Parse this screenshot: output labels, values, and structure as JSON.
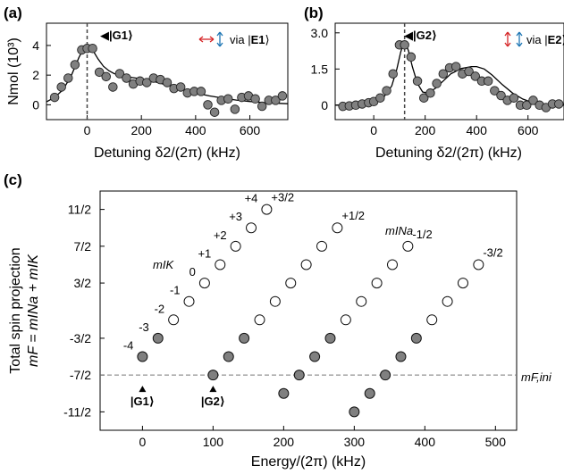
{
  "figure": {
    "panels": [
      {
        "id": "a",
        "label": "(a)"
      },
      {
        "id": "b",
        "label": "(b)"
      },
      {
        "id": "c",
        "label": "(c)"
      }
    ]
  },
  "chart_data": [
    {
      "panel": "(a)",
      "type": "scatter",
      "xlabel": "Detuning δ2/(2π) (kHz)",
      "ylabel": "Nmol (10³)",
      "xlim": [
        -150,
        740
      ],
      "ylim": [
        -1,
        5.5
      ],
      "xticks": [
        0,
        200,
        400,
        600
      ],
      "yticks": [
        0,
        2,
        4
      ],
      "grid": false,
      "points": {
        "x": [
          -120,
          -95,
          -70,
          -45,
          -20,
          0,
          20,
          45,
          70,
          95,
          120,
          145,
          170,
          195,
          220,
          245,
          270,
          295,
          320,
          345,
          370,
          395,
          420,
          445,
          470,
          495,
          520,
          545,
          570,
          595,
          620,
          645,
          670,
          695,
          720
        ],
        "y": [
          0.5,
          1.2,
          1.8,
          2.7,
          3.7,
          3.8,
          3.8,
          2.2,
          1.9,
          1.2,
          2.1,
          1.8,
          1.4,
          1.6,
          1.5,
          1.8,
          1.7,
          1.5,
          1.1,
          1.2,
          0.8,
          0.9,
          0.9,
          0.0,
          -0.5,
          0.3,
          0.4,
          -0.3,
          0.5,
          0.6,
          0.4,
          -0.1,
          0.3,
          0.3,
          0.6
        ]
      },
      "fit": {
        "x": [
          -150,
          -120,
          -90,
          -60,
          -30,
          -10,
          0,
          10,
          20,
          40,
          60,
          80,
          100,
          130,
          160,
          200,
          250,
          300,
          350,
          400,
          450,
          500,
          550,
          600,
          650,
          700,
          740
        ],
        "y": [
          0.2,
          0.5,
          1.0,
          1.9,
          3.2,
          3.9,
          4.0,
          3.9,
          3.7,
          3.1,
          2.6,
          2.3,
          2.1,
          1.95,
          1.85,
          1.75,
          1.55,
          1.3,
          1.05,
          0.8,
          0.6,
          0.45,
          0.32,
          0.22,
          0.15,
          0.1,
          0.07
        ]
      },
      "vline_x": 0,
      "annotations": {
        "state_label": "◀|G1⟩",
        "via_text": "via |",
        "via_state": "E1",
        "via_close": "⟩"
      }
    },
    {
      "panel": "(b)",
      "type": "scatter",
      "xlabel": "Detuning δ2/(2π) (kHz)",
      "ylabel": "",
      "xlim": [
        -150,
        740
      ],
      "ylim": [
        -0.6,
        3.4
      ],
      "xticks": [
        0,
        200,
        400,
        600
      ],
      "yticks": [
        0,
        1.5,
        3.0
      ],
      "ytick_labels": [
        "0",
        "1.5",
        "3.0"
      ],
      "grid": false,
      "points": {
        "x": [
          -120,
          -95,
          -70,
          -45,
          -20,
          0,
          25,
          50,
          75,
          100,
          120,
          145,
          170,
          195,
          220,
          245,
          270,
          295,
          320,
          345,
          370,
          395,
          420,
          445,
          470,
          495,
          520,
          545,
          570,
          595,
          620,
          645,
          670,
          695,
          720
        ],
        "y": [
          -0.05,
          -0.03,
          0.0,
          0.05,
          0.1,
          0.15,
          0.3,
          0.6,
          1.3,
          2.5,
          2.5,
          2.0,
          1.0,
          0.3,
          0.5,
          0.9,
          1.3,
          1.55,
          1.6,
          1.3,
          1.4,
          1.2,
          1.0,
          1.0,
          0.6,
          0.4,
          0.2,
          0.3,
          0.0,
          0.0,
          0.2,
          0.0,
          -0.1,
          0.05,
          0.05
        ]
      },
      "fit": {
        "x": [
          -150,
          -100,
          -50,
          0,
          40,
          70,
          90,
          105,
          115,
          120,
          125,
          135,
          150,
          170,
          190,
          210,
          240,
          270,
          300,
          340,
          380,
          400,
          430,
          460,
          500,
          540,
          580,
          620,
          660,
          700,
          740
        ],
        "y": [
          0.0,
          0.02,
          0.06,
          0.15,
          0.35,
          0.8,
          1.5,
          2.2,
          2.55,
          2.6,
          2.55,
          2.25,
          1.6,
          0.9,
          0.55,
          0.5,
          0.7,
          1.0,
          1.3,
          1.52,
          1.6,
          1.6,
          1.5,
          1.25,
          0.85,
          0.5,
          0.25,
          0.1,
          0.04,
          0.01,
          0.0
        ]
      },
      "vline_x": 120,
      "annotations": {
        "state_label": "◀|G2⟩",
        "via_text": "via |",
        "via_state": "E2",
        "via_close": "⟩"
      }
    },
    {
      "panel": "(c)",
      "type": "scatter",
      "xlabel": "Energy/(2π) (kHz)",
      "ylabel_line1": "Total spin projection",
      "ylabel_line2": "mF = mINa + mIK",
      "xlim": [
        -60,
        530
      ],
      "ylim": [
        -13,
        13
      ],
      "xticks": [
        0,
        100,
        200,
        300,
        400,
        500
      ],
      "yticks": [
        11,
        7,
        3,
        -3,
        -7,
        -11
      ],
      "ytick_labels": [
        "11/2",
        "7/2",
        "3/2",
        "-3/2",
        "-7/2",
        "-11/2"
      ],
      "grid": false,
      "hline_y": -7,
      "hline_label": "mF,ini",
      "series": [
        {
          "name": "+3/2",
          "x": [
            0,
            22,
            44,
            66,
            88,
            110,
            132,
            154,
            176
          ],
          "y": [
            -5,
            -3,
            -1,
            1,
            3,
            5,
            7,
            9,
            11
          ]
        },
        {
          "name": "+1/2",
          "x": [
            100,
            122,
            144,
            166,
            188,
            210,
            232,
            254,
            276
          ],
          "y": [
            -7,
            -5,
            -3,
            -1,
            1,
            3,
            5,
            7,
            9
          ]
        },
        {
          "name": "-1/2",
          "x": [
            200,
            222,
            244,
            266,
            288,
            310,
            332,
            354,
            376
          ],
          "y": [
            -9,
            -7,
            -5,
            -3,
            -1,
            1,
            3,
            5,
            7
          ]
        },
        {
          "name": "-3/2",
          "x": [
            300,
            322,
            344,
            366,
            388,
            410,
            432,
            454,
            476
          ],
          "y": [
            -11,
            -9,
            -7,
            -5,
            -3,
            -1,
            1,
            3,
            5
          ]
        }
      ],
      "open_threshold": -1,
      "mIK_labels": [
        "-4",
        "-3",
        "-2",
        "-1",
        "0",
        "+1",
        "+2",
        "+3",
        "+4"
      ],
      "mIK_axis_label": "mIK",
      "mINa_axis_label": "mINa",
      "markers": [
        {
          "label": "|G1⟩",
          "x": 0,
          "y": -7
        },
        {
          "label": "|G2⟩",
          "x": 100,
          "y": -7
        }
      ]
    }
  ]
}
